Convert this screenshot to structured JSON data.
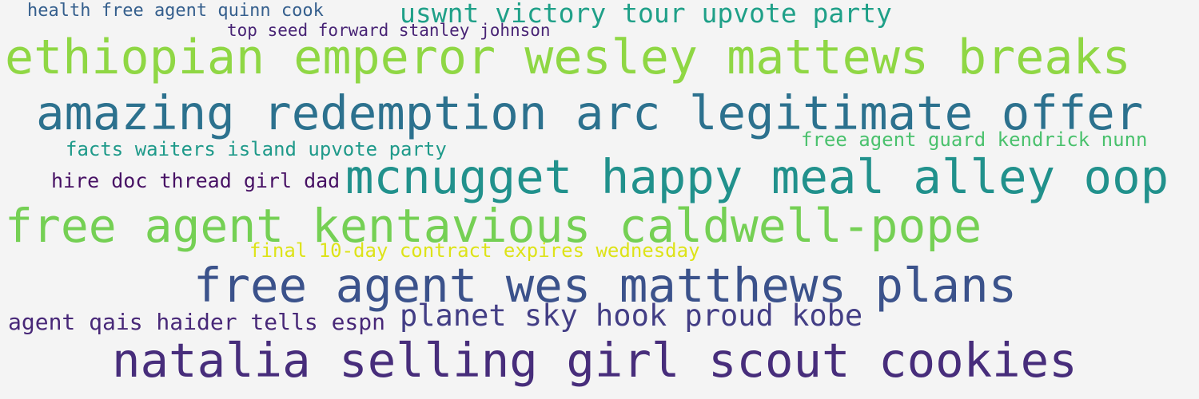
{
  "phrases": [
    {
      "text": "health free agent quinn cook",
      "color": "#355f8d"
    },
    {
      "text": "uswnt victory tour upvote party",
      "color": "#1fa088"
    },
    {
      "text": "top seed forward stanley johnson",
      "color": "#482475"
    },
    {
      "text": "ethiopian emperor wesley mattews breaks",
      "color": "#8fd744"
    },
    {
      "text": "amazing redemption arc legitimate offer",
      "color": "#2c718e"
    },
    {
      "text": "facts waiters island upvote party",
      "color": "#1f9a8a"
    },
    {
      "text": "free agent guard kendrick nunn",
      "color": "#4ac16d"
    },
    {
      "text": "hire doc thread girl dad",
      "color": "#471164"
    },
    {
      "text": "mcnugget happy meal alley oop",
      "color": "#21918c"
    },
    {
      "text": "free agent kentavious caldwell-pope",
      "color": "#75d054"
    },
    {
      "text": "final 10-day contract expires wednesday",
      "color": "#dde318"
    },
    {
      "text": "free agent wes matthews plans",
      "color": "#3b528b"
    },
    {
      "text": "agent qais haider tells espn",
      "color": "#482878"
    },
    {
      "text": "planet sky hook proud kobe",
      "color": "#433e85"
    },
    {
      "text": "natalia selling girl scout cookies",
      "color": "#472d7b"
    }
  ]
}
